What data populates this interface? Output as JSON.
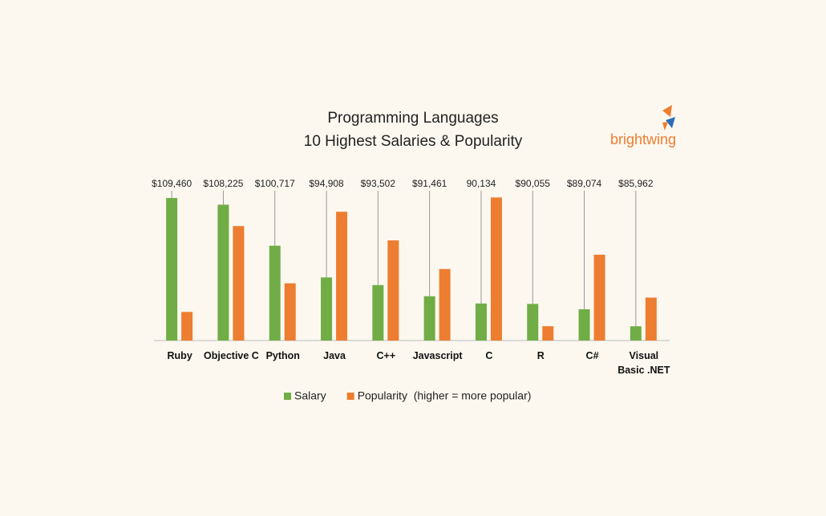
{
  "chart_data": {
    "type": "bar",
    "title": "Programming Languages",
    "subtitle": "10 Highest Salaries & Popularity",
    "categories": [
      "Ruby",
      "Objective C",
      "Python",
      "Java",
      "C++",
      "Javascript",
      "C",
      "R",
      "C#",
      "Visual Basic .NET"
    ],
    "series": [
      {
        "name": "Salary",
        "color": "#70ad47",
        "values": [
          109460,
          108225,
          100717,
          94908,
          93502,
          91461,
          90134,
          90055,
          89074,
          85962
        ],
        "value_labels": [
          "$109,460",
          "$108,225",
          "$100,717",
          "$94,908",
          "$93,502",
          "$91,461",
          "90,134",
          "$90,055",
          "$89,074",
          "$85,962"
        ]
      },
      {
        "name": "Popularity  (higher = more popular)",
        "color": "#ed7d31",
        "axis": "y2",
        "values": [
          2,
          8,
          4,
          9,
          7,
          5,
          10,
          1,
          6,
          3
        ]
      }
    ],
    "ylim": [
      83350,
      112700
    ],
    "y2lim": [
      0,
      11.2
    ],
    "grid": false,
    "legend": "bottom"
  },
  "logo": "brightwing"
}
